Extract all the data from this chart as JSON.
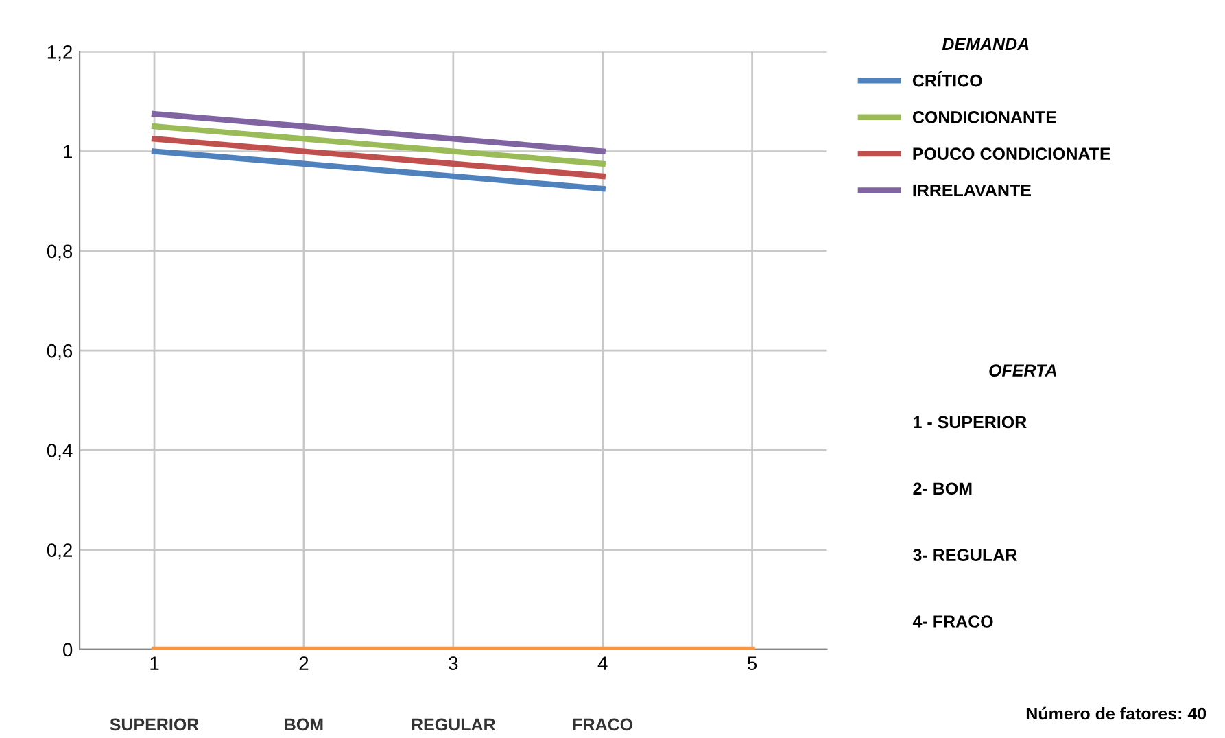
{
  "chart_data": {
    "type": "line",
    "categories": [
      "1",
      "2",
      "3",
      "4",
      "5"
    ],
    "series": [
      {
        "name": "CRÍTICO",
        "color": "#4f81bd",
        "values": [
          1,
          0.975,
          0.95,
          0.925,
          null
        ]
      },
      {
        "name": "CONDICIONANTE",
        "color": "#9bbb59",
        "values": [
          1.05,
          1.025,
          1.0,
          0.975,
          null
        ]
      },
      {
        "name": "POUCO CONDICIONATE",
        "color": "#c0504d",
        "values": [
          1.025,
          1.0,
          0.975,
          0.95,
          null
        ]
      },
      {
        "name": "IRRELAVANTE",
        "color": "#8064a2",
        "values": [
          1.075,
          1.05,
          1.025,
          1.0,
          null
        ]
      },
      {
        "color": "#f79646",
        "values": [
          0,
          0,
          0,
          0,
          0
        ]
      }
    ],
    "legend_title": "DEMANDA",
    "legend": "right",
    "ylim": [
      0,
      1.2
    ],
    "yticks": [
      0,
      {
        "value": 0.2,
        "label": "0,2"
      },
      {
        "value": 0.4,
        "label": "0,4"
      },
      {
        "value": 0.6,
        "label": "0,6"
      },
      {
        "value": 0.8,
        "label": "0,8"
      },
      1,
      {
        "value": 1.2,
        "label": "1,2"
      }
    ],
    "grid": true,
    "marker": "none",
    "line_style": "solid",
    "annotations": [
      "SUPERIOR",
      "BOM",
      "REGULAR",
      "FRACO",
      "OFERTA",
      "1 - SUPERIOR",
      "2- BOM",
      "3- REGULAR",
      "4- FRACO",
      "Número de fatores: 40"
    ]
  }
}
